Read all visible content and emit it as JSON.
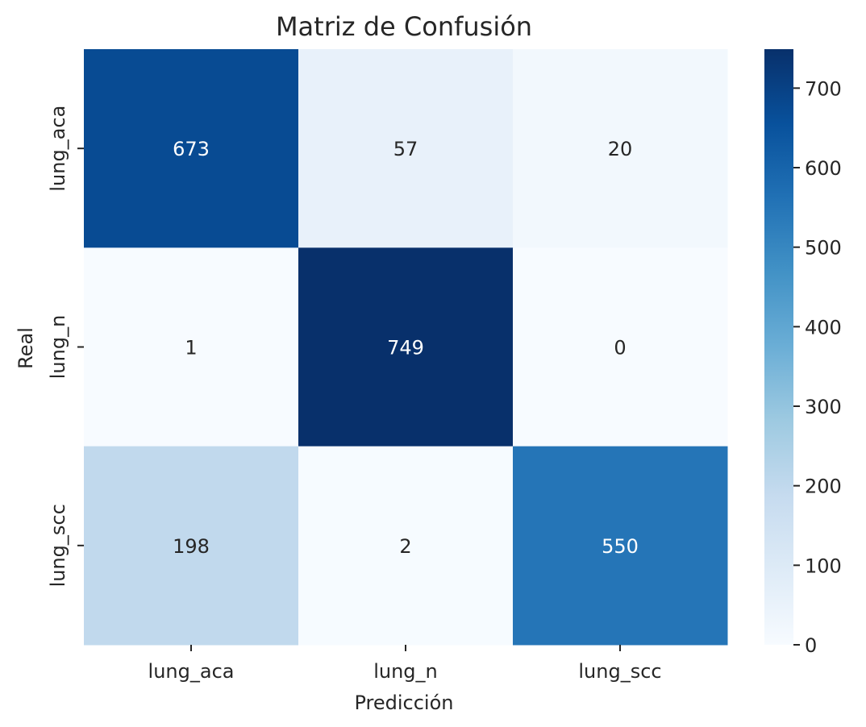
{
  "chart_data": {
    "type": "heatmap",
    "title": "Matriz de Confusión",
    "xlabel": "Predicción",
    "ylabel": "Real",
    "x_categories": [
      "lung_aca",
      "lung_n",
      "lung_scc"
    ],
    "y_categories": [
      "lung_aca",
      "lung_n",
      "lung_scc"
    ],
    "values": [
      [
        673,
        57,
        20
      ],
      [
        1,
        749,
        0
      ],
      [
        198,
        2,
        550
      ]
    ],
    "colormap": "Blues",
    "color_range": [
      0,
      749
    ],
    "colorbar_ticks": [
      0,
      100,
      200,
      300,
      400,
      500,
      600,
      700
    ],
    "grid": false
  }
}
